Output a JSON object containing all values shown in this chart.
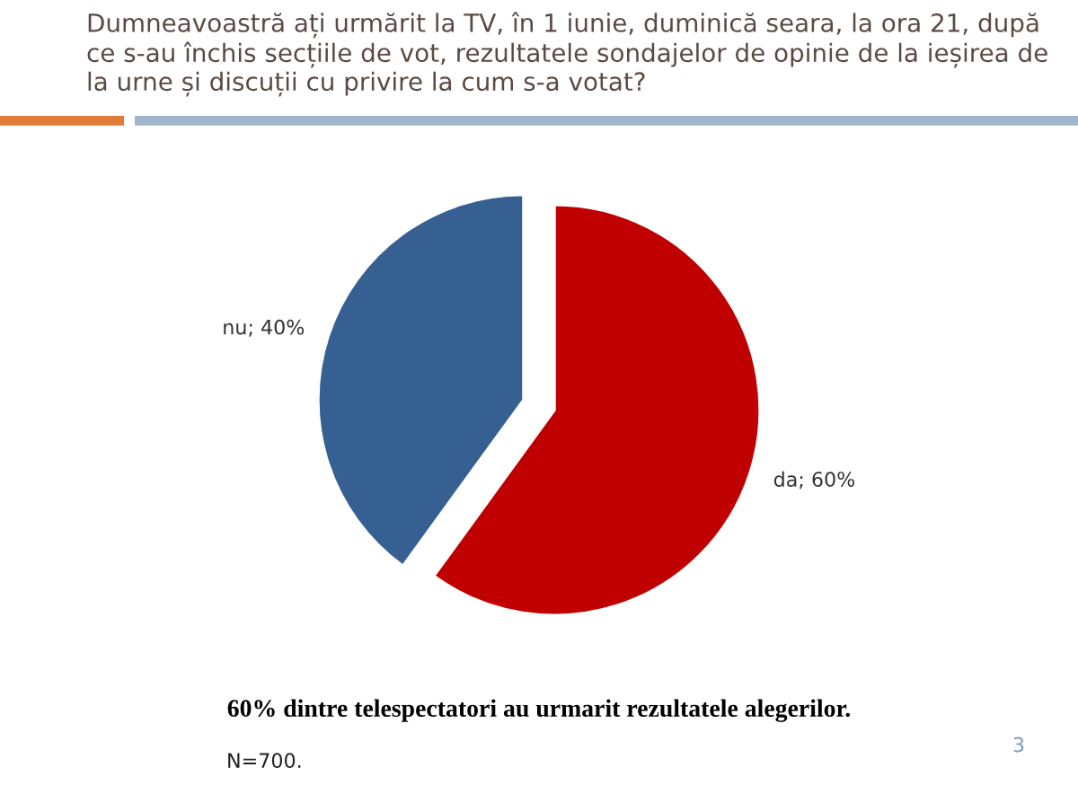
{
  "chart_data": {
    "type": "pie",
    "title": "Dumneavoastră ați urmărit la TV, în 1 iunie, duminică seara, la ora 21, după ce s-au închis secțiile de vot, rezultatele sondajelor de opinie de la ieșirea de la urne și discuții cu privire la cum s-a votat?",
    "categories": [
      "da",
      "nu"
    ],
    "values": [
      60,
      40
    ],
    "value_labels": [
      "60%",
      "40%"
    ],
    "colors": [
      "#c00000",
      "#376092"
    ],
    "annotations": [
      "60% dintre telespectatori au urmarit rezultatele alegerilor.",
      "N=700.",
      "3"
    ]
  }
}
